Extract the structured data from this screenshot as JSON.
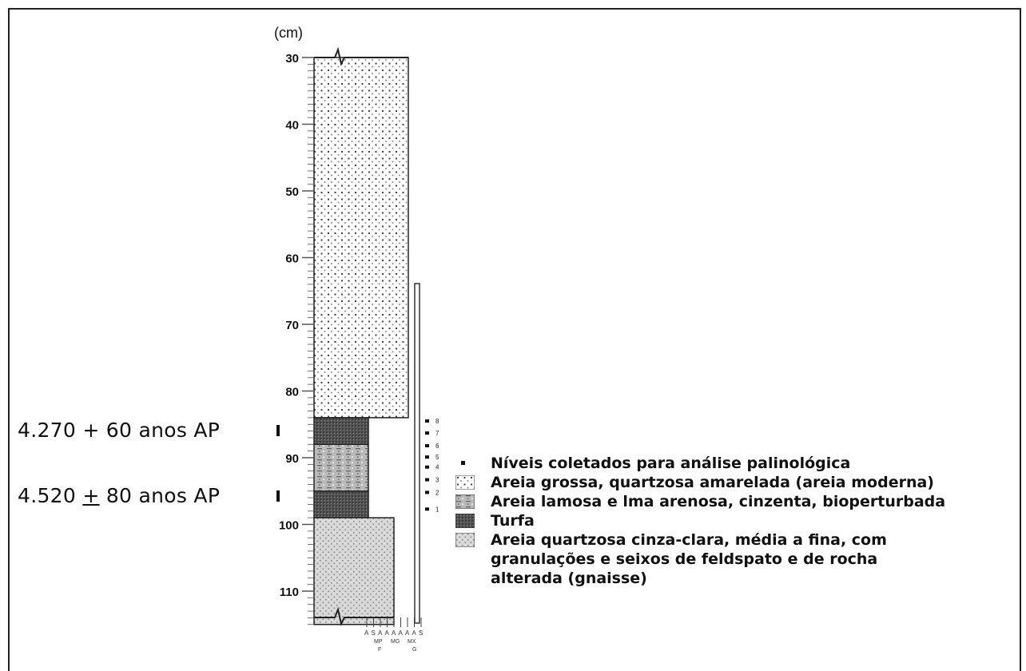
{
  "diagram": {
    "depth_unit_label": "(cm)",
    "depth_ticks": [
      "30",
      "40",
      "50",
      "60",
      "70",
      "80",
      "90",
      "100",
      "110"
    ],
    "dates": [
      {
        "text_before": "4.270 + 60 anos AP",
        "underlined": "",
        "text_after": ""
      },
      {
        "text_before": "4.520 ",
        "underlined": "+",
        "text_after": " 80 anos AP"
      }
    ],
    "sample_numbers": [
      "8",
      "7",
      "6",
      "5",
      "4",
      "3",
      "2",
      "1"
    ],
    "grain_size_scale": [
      "A",
      "S",
      "A",
      "A",
      "A",
      "A",
      "A",
      "A",
      "S"
    ],
    "grain_size_scale_row2": [
      "MP",
      "MG",
      "MX"
    ],
    "grain_size_scale_row3": [
      "F",
      "G"
    ],
    "layers": [
      {
        "name": "areia-grossa",
        "top_cm": 30,
        "bottom_cm": 84
      },
      {
        "name": "turfa",
        "top_cm": 84,
        "bottom_cm": 88
      },
      {
        "name": "areia-lamosa",
        "top_cm": 88,
        "bottom_cm": 95
      },
      {
        "name": "turfa",
        "top_cm": 95,
        "bottom_cm": 99
      },
      {
        "name": "areia-quartzosa",
        "top_cm": 99,
        "bottom_cm": 115
      }
    ],
    "legend": [
      {
        "type": "dot",
        "text": "Níveis coletados para análise palinológica"
      },
      {
        "type": "dotted-sand",
        "text": "Areia grossa, quartzosa amarelada (areia moderna)"
      },
      {
        "type": "muddy-sand",
        "text": "Areia lamosa e lma arenosa, cinzenta, bioperturbada"
      },
      {
        "type": "peat",
        "text": "Turfa"
      },
      {
        "type": "fine-sand",
        "lines": [
          "Areia quartzosa cinza-clara, média a fina, com",
          "granulações e seixos de feldspato e de rocha",
          "alterada (gnaisse)"
        ]
      }
    ]
  }
}
